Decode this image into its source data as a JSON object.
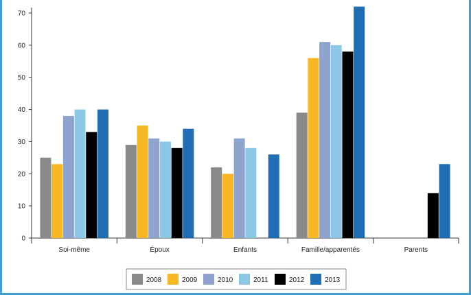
{
  "chart_data": {
    "type": "bar",
    "title": "",
    "xlabel": "",
    "ylabel": "",
    "ylim": [
      0,
      70
    ],
    "yticks": [
      0,
      10,
      20,
      30,
      40,
      50,
      60,
      70
    ],
    "grid": false,
    "legend_position": "bottom",
    "categories": [
      "Soi-même",
      "Époux",
      "Enfants",
      "Famille/apparentés",
      "Parents"
    ],
    "series": [
      {
        "name": "2008",
        "color": "#8a8a8a",
        "values": [
          25,
          29,
          22,
          39,
          null
        ]
      },
      {
        "name": "2009",
        "color": "#f7b823",
        "values": [
          23,
          35,
          20,
          56,
          null
        ]
      },
      {
        "name": "2010",
        "color": "#8fa3cf",
        "values": [
          38,
          31,
          31,
          61,
          null
        ]
      },
      {
        "name": "2011",
        "color": "#8cc8e6",
        "values": [
          40,
          30,
          28,
          60,
          null
        ]
      },
      {
        "name": "2012",
        "color": "#000000",
        "values": [
          33,
          28,
          null,
          58,
          14
        ]
      },
      {
        "name": "2013",
        "color": "#1f6db3",
        "values": [
          40,
          34,
          26,
          72,
          23
        ]
      }
    ]
  }
}
